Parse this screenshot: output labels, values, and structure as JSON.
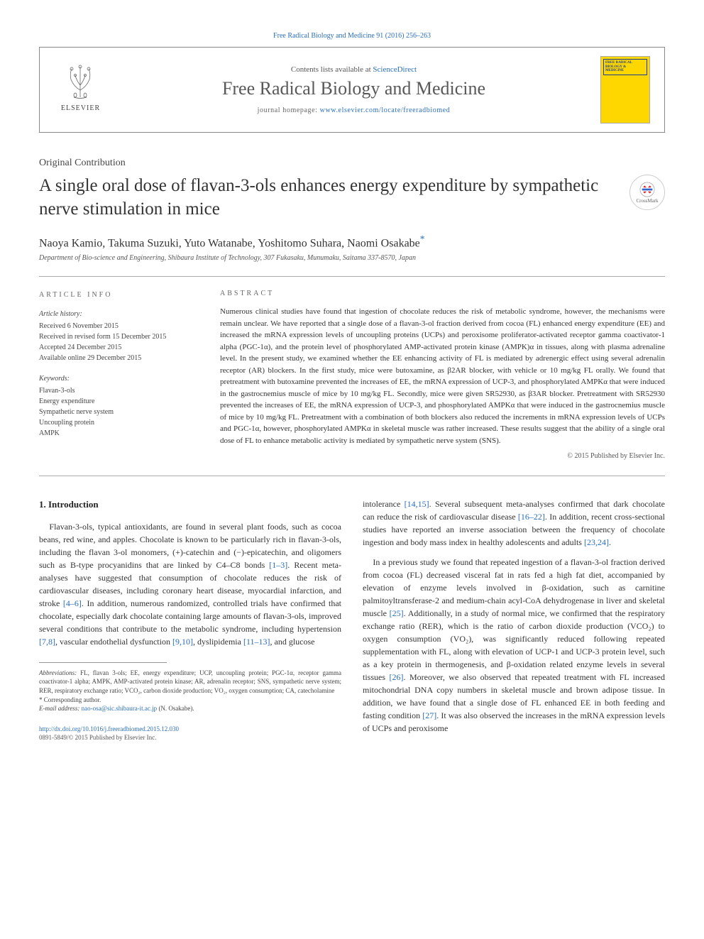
{
  "top_link": {
    "journal": "Free Radical Biology and Medicine 91 (2016) 256–263",
    "url_text": "Free Radical Biology and Medicine 91 (2016) 256–263"
  },
  "header": {
    "contents_prefix": "Contents lists available at ",
    "contents_link": "ScienceDirect",
    "journal_title": "Free Radical Biology and Medicine",
    "homepage_prefix": "journal homepage: ",
    "homepage_url": "www.elsevier.com/locate/freeradbiomed",
    "publisher_name": "ELSEVIER",
    "cover_title": "FREE RADICAL BIOLOGY & MEDICINE"
  },
  "article": {
    "type": "Original Contribution",
    "title": "A single oral dose of flavan-3-ols enhances energy expenditure by sympathetic nerve stimulation in mice",
    "crossmark_label": "CrossMark",
    "authors": "Naoya Kamio, Takuma Suzuki, Yuto Watanabe, Yoshitomo Suhara, Naomi Osakabe",
    "corr_marker": "*",
    "affiliation": "Department of Bio-science and Engineering, Shibaura Institute of Technology, 307 Fukasaku, Munumaku, Saitama 337-8570, Japan"
  },
  "info": {
    "heading": "ARTICLE INFO",
    "history_label": "Article history:",
    "received": "Received 6 November 2015",
    "revised": "Received in revised form 15 December 2015",
    "accepted": "Accepted 24 December 2015",
    "online": "Available online 29 December 2015",
    "keywords_label": "Keywords:",
    "keywords": [
      "Flavan-3-ols",
      "Energy expenditure",
      "Sympathetic nerve system",
      "Uncoupling protein",
      "AMPK"
    ]
  },
  "abstract": {
    "heading": "ABSTRACT",
    "text": "Numerous clinical studies have found that ingestion of chocolate reduces the risk of metabolic syndrome, however, the mechanisms were remain unclear. We have reported that a single dose of a flavan-3-ol fraction derived from cocoa (FL) enhanced energy expenditure (EE) and increased the mRNA expression levels of uncoupling proteins (UCPs) and peroxisome proliferator-activated receptor gamma coactivator-1 alpha (PGC-1α), and the protein level of phosphorylated AMP-activated protein kinase (AMPK)α in tissues, along with plasma adrenaline level. In the present study, we examined whether the EE enhancing activity of FL is mediated by adrenergic effect using several adrenalin receptor (AR) blockers. In the first study, mice were butoxamine, as β2AR blocker, with vehicle or 10 mg/kg FL orally. We found that pretreatment with butoxamine prevented the increases of EE, the mRNA expression of UCP-3, and phosphorylated AMPKα that were induced in the gastrocnemius muscle of mice by 10 mg/kg FL. Secondly, mice were given SR52930, as β3AR blocker. Pretreatment with SR52930 prevented the increases of EE, the mRNA expression of UCP-3, and phosphorylated AMPKα that were induced in the gastrocnemius muscle of mice by 10 mg/kg FL. Pretreatment with a combination of both blockers also reduced the increments in mRNA expression levels of UCPs and PGC-1α, however, phosphorylated AMPKα in skeletal muscle was rather increased. These results suggest that the ability of a single oral dose of FL to enhance metabolic activity is mediated by sympathetic nerve system (SNS).",
    "copyright": "© 2015 Published by Elsevier Inc."
  },
  "body": {
    "section_heading": "1. Introduction",
    "left_paragraphs": [
      "Flavan-3-ols, typical antioxidants, are found in several plant foods, such as cocoa beans, red wine, and apples. Chocolate is known to be particularly rich in flavan-3-ols, including the flavan 3-ol monomers, (+)-catechin and (−)-epicatechin, and oligomers such as B-type procyanidins that are linked by C4–C8 bonds [1–3]. Recent meta-analyses have suggested that consumption of chocolate reduces the risk of cardiovascular diseases, including coronary heart disease, myocardial infarction, and stroke [4–6]. In addition, numerous randomized, controlled trials have confirmed that chocolate, especially dark chocolate containing large amounts of flavan-3-ols, improved several conditions that contribute to the metabolic syndrome, including hypertension [7,8], vascular endothelial dysfunction [9,10], dyslipidemia [11–13], and glucose"
    ],
    "right_paragraphs": [
      "intolerance [14,15]. Several subsequent meta-analyses confirmed that dark chocolate can reduce the risk of cardiovascular disease [16–22]. In addition, recent cross-sectional studies have reported an inverse association between the frequency of chocolate ingestion and body mass index in healthy adolescents and adults [23,24].",
      "In a previous study we found that repeated ingestion of a flavan-3-ol fraction derived from cocoa (FL) decreased visceral fat in rats fed a high fat diet, accompanied by elevation of enzyme levels involved in β-oxidation, such as carnitine palmitoyltransferase-2 and medium-chain acyl-CoA dehydrogenase in liver and skeletal muscle [25]. Additionally, in a study of normal mice, we confirmed that the respiratory exchange ratio (RER), which is the ratio of carbon dioxide production (VCO₂) to oxygen consumption (VO₂), was significantly reduced following repeated supplementation with FL, along with elevation of UCP-1 and UCP-3 protein level, such as a key protein in thermogenesis, and β-oxidation related enzyme levels in several tissues [26]. Moreover, we also observed that repeated treatment with FL increased mitochondrial DNA copy numbers in skeletal muscle and brown adipose tissue. In addition, we have found that a single dose of FL enhanced EE in both feeding and fasting condition [27]. It was also observed the increases in the mRNA expression levels of UCPs and peroxisome"
    ],
    "refs_left": [
      "[1–3]",
      "[4–6]",
      "[7,8]",
      "[9,10]",
      "[11–13]"
    ],
    "refs_right": [
      "[14,15]",
      "[16–22]",
      "[23,24]",
      "[25]",
      "[26]",
      "[27]"
    ]
  },
  "footnotes": {
    "abbrev_label": "Abbreviations:",
    "abbrev_text": " FL, flavan 3-ols; EE, energy expenditure; UCP, uncoupling protein; PGC-1α, receptor gamma coactivator-1 alpha; AMPK, AMP-activated protein kinase; AR, adrenalin receptor; SNS, sympathetic nerve system; RER, respiratory exchange ratio; VCO₂, carbon dioxide production; VO₂, oxygen consumption; CA, catecholamine",
    "corr_label": "* Corresponding author.",
    "email_label": "E-mail address:",
    "email": "nao-osa@sic.shibaura-it.ac.jp",
    "email_suffix": " (N. Osakabe)."
  },
  "footer": {
    "doi": "http://dx.doi.org/10.1016/j.freeradbiomed.2015.12.030",
    "issn_line": "0891-5849/© 2015 Published by Elsevier Inc."
  },
  "colors": {
    "link": "#2a6ebb",
    "text": "#333",
    "heading_gray": "#666",
    "border": "#888",
    "cover_bg": "#ffd700",
    "cover_text": "#1a3d8f"
  }
}
